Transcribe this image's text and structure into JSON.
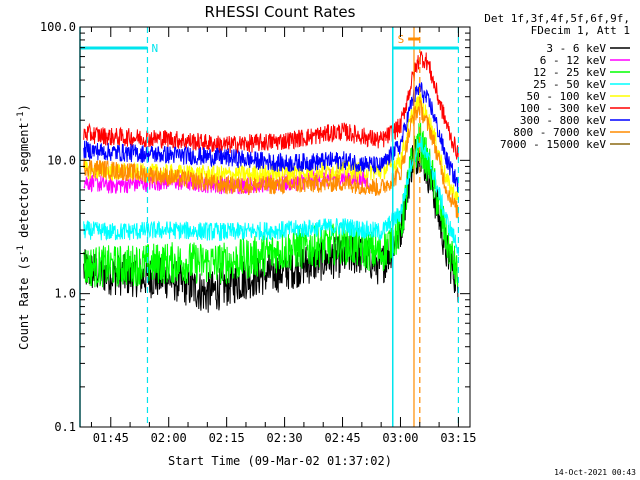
{
  "chart_data": {
    "type": "line",
    "title": "RHESSI Count Rates",
    "xlabel_prefix": "Start Time (",
    "xlabel_date": "09-Mar-02 01:37:02",
    "xlabel_suffix": ")",
    "ylabel": "Count Rate (s",
    "ylabel_sup": "-1",
    "ylabel_rest": " detector segment",
    "ylabel_sup2": "-1",
    "ylabel_end": ")",
    "xlim": [
      "01:37:02",
      "03:18:00"
    ],
    "ylim": [
      0.1,
      100.0
    ],
    "yscale": "log",
    "x_ticks": [
      "01:45",
      "02:00",
      "02:15",
      "02:30",
      "02:45",
      "03:00",
      "03:15"
    ],
    "y_ticks": [
      "0.1",
      "1.0",
      "10.0",
      "100.0"
    ],
    "legend_header": [
      "Det 1f,3f,4f,5f,6f,9f,",
      "FDecim 1, Att 1"
    ],
    "series": [
      {
        "name": "3 - 6 keV",
        "color": "#000000",
        "points": [
          [
            "01:38",
            1.5
          ],
          [
            "01:45",
            1.4
          ],
          [
            "02:00",
            1.3
          ],
          [
            "02:10",
            1.0
          ],
          [
            "02:20",
            1.3
          ],
          [
            "02:30",
            1.5
          ],
          [
            "02:40",
            1.8
          ],
          [
            "02:50",
            2.0
          ],
          [
            "02:55",
            1.6
          ],
          [
            "03:00",
            3.0
          ],
          [
            "03:03",
            10.0
          ],
          [
            "03:05",
            12.0
          ],
          [
            "03:08",
            7.0
          ],
          [
            "03:12",
            2.0
          ],
          [
            "03:15",
            1.2
          ]
        ]
      },
      {
        "name": "6 - 12 keV",
        "color": "#ff00ff",
        "points": [
          [
            "01:38",
            7.0
          ],
          [
            "01:45",
            6.5
          ],
          [
            "02:00",
            7.0
          ],
          [
            "02:15",
            6.5
          ],
          [
            "02:30",
            6.8
          ],
          [
            "02:45",
            7.5
          ],
          [
            "02:52",
            7.0
          ]
        ]
      },
      {
        "name": "12 - 25 keV",
        "color": "#00ff00",
        "points": [
          [
            "01:38",
            1.6
          ],
          [
            "01:45",
            1.6
          ],
          [
            "02:00",
            1.7
          ],
          [
            "02:15",
            1.7
          ],
          [
            "02:30",
            2.1
          ],
          [
            "02:45",
            2.4
          ],
          [
            "02:55",
            2.0
          ],
          [
            "03:00",
            3.0
          ],
          [
            "03:03",
            10.0
          ],
          [
            "03:05",
            14.0
          ],
          [
            "03:08",
            8.0
          ],
          [
            "03:12",
            2.5
          ],
          [
            "03:15",
            1.3
          ]
        ]
      },
      {
        "name": "25 - 50 keV",
        "color": "#00ffff",
        "points": [
          [
            "01:38",
            3.0
          ],
          [
            "01:45",
            2.9
          ],
          [
            "02:00",
            3.0
          ],
          [
            "02:15",
            2.9
          ],
          [
            "02:30",
            3.0
          ],
          [
            "02:45",
            3.2
          ],
          [
            "02:55",
            2.9
          ],
          [
            "03:00",
            4.0
          ],
          [
            "03:03",
            10.0
          ],
          [
            "03:05",
            14.0
          ],
          [
            "03:08",
            9.0
          ],
          [
            "03:12",
            3.5
          ],
          [
            "03:15",
            2.2
          ]
        ]
      },
      {
        "name": "50 - 100 keV",
        "color": "#ffff00",
        "points": [
          [
            "01:38",
            8.5
          ],
          [
            "01:45",
            8.2
          ],
          [
            "02:00",
            8.0
          ],
          [
            "02:15",
            7.8
          ],
          [
            "02:30",
            8.0
          ],
          [
            "02:45",
            8.5
          ],
          [
            "02:55",
            8.2
          ],
          [
            "03:00",
            10.0
          ],
          [
            "03:03",
            22.0
          ],
          [
            "03:05",
            28.0
          ],
          [
            "03:08",
            18.0
          ],
          [
            "03:12",
            7.0
          ],
          [
            "03:15",
            5.0
          ]
        ]
      },
      {
        "name": "100 - 300 keV",
        "color": "#ff0000",
        "points": [
          [
            "01:38",
            16.0
          ],
          [
            "01:45",
            15.0
          ],
          [
            "02:00",
            14.5
          ],
          [
            "02:15",
            13.0
          ],
          [
            "02:30",
            14.0
          ],
          [
            "02:45",
            16.5
          ],
          [
            "02:55",
            14.0
          ],
          [
            "03:00",
            18.0
          ],
          [
            "03:03",
            40.0
          ],
          [
            "03:05",
            60.0
          ],
          [
            "03:07",
            55.0
          ],
          [
            "03:10",
            28.0
          ],
          [
            "03:13",
            15.0
          ],
          [
            "03:15",
            11.0
          ]
        ]
      },
      {
        "name": "300 - 800 keV",
        "color": "#0000ff",
        "points": [
          [
            "01:38",
            12.0
          ],
          [
            "01:45",
            11.5
          ],
          [
            "02:00",
            11.0
          ],
          [
            "02:15",
            10.5
          ],
          [
            "02:30",
            9.5
          ],
          [
            "02:45",
            10.0
          ],
          [
            "02:55",
            9.0
          ],
          [
            "03:00",
            13.0
          ],
          [
            "03:03",
            28.0
          ],
          [
            "03:05",
            35.0
          ],
          [
            "03:08",
            25.0
          ],
          [
            "03:12",
            10.0
          ],
          [
            "03:15",
            6.5
          ]
        ]
      },
      {
        "name": "800 - 7000 keV",
        "color": "#ff8c00",
        "points": [
          [
            "01:38",
            9.0
          ],
          [
            "01:45",
            8.5
          ],
          [
            "02:00",
            7.5
          ],
          [
            "02:15",
            6.5
          ],
          [
            "02:30",
            6.5
          ],
          [
            "02:45",
            6.8
          ],
          [
            "02:55",
            6.2
          ],
          [
            "03:00",
            8.0
          ],
          [
            "03:03",
            20.0
          ],
          [
            "03:05",
            25.0
          ],
          [
            "03:08",
            16.0
          ],
          [
            "03:12",
            6.0
          ],
          [
            "03:15",
            4.0
          ]
        ]
      },
      {
        "name": "7000 - 15000 keV",
        "color": "#8b6914",
        "points": []
      }
    ],
    "annotations": {
      "attenuator_label": "N",
      "shutter_label": "S",
      "attenuator_segments": [
        [
          "01:37:02",
          "01:54:30"
        ],
        [
          "02:58:00",
          "03:15:00"
        ]
      ],
      "shutter_segment": [
        "03:02:00",
        "03:05:00"
      ],
      "cyan_dashed_lines": [
        "01:54:30",
        "03:15:00"
      ],
      "cyan_solid_lines": [
        "01:37:02",
        "02:58:00"
      ],
      "orange_solid_lines": [
        "03:03:30"
      ],
      "orange_dashed_lines": [
        "03:05:00"
      ]
    },
    "grid": false,
    "legend_position": "right"
  },
  "footer": {
    "timestamp": "14-Oct-2021 00:43"
  }
}
